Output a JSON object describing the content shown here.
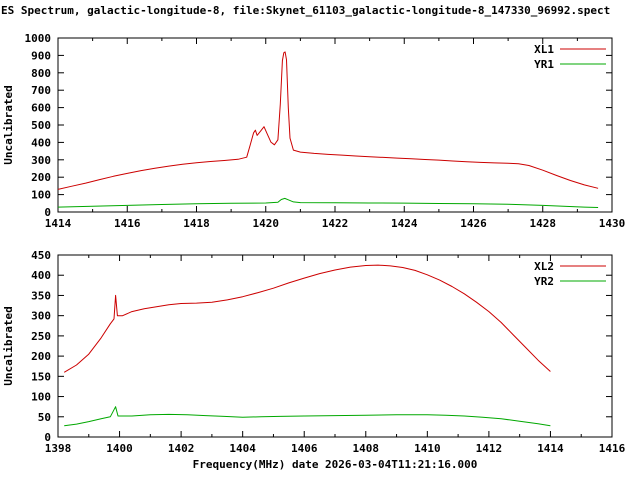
{
  "title": "ES Spectrum, galactic-longitude-8, file:Skynet_61103_galactic-longitude-8_147330_96992.spect",
  "xlabel": "Frequency(MHz) date 2026-03-04T11:21:16.000",
  "colors": {
    "axis": "#000000",
    "background": "#ffffff",
    "red_series": "#cc0000",
    "green_series": "#00a800"
  },
  "chart_data": [
    {
      "type": "line",
      "title": "",
      "ylabel": "Uncalibrated",
      "xlabel": "",
      "xlim": [
        1414,
        1430
      ],
      "ylim": [
        0,
        1000
      ],
      "xtick_step": 2,
      "xminor_step": 1,
      "ytick_step": 100,
      "grid": false,
      "legend_position": "top-right",
      "series": [
        {
          "name": "XL1",
          "color": "#cc0000",
          "points": [
            [
              1414.0,
              130
            ],
            [
              1414.4,
              148
            ],
            [
              1414.8,
              166
            ],
            [
              1415.2,
              186
            ],
            [
              1415.6,
              205
            ],
            [
              1416.0,
              222
            ],
            [
              1416.4,
              238
            ],
            [
              1416.8,
              252
            ],
            [
              1417.2,
              264
            ],
            [
              1417.6,
              274
            ],
            [
              1418.0,
              283
            ],
            [
              1418.4,
              290
            ],
            [
              1418.8,
              296
            ],
            [
              1419.2,
              303
            ],
            [
              1419.45,
              315
            ],
            [
              1419.55,
              385
            ],
            [
              1419.65,
              455
            ],
            [
              1419.7,
              470
            ],
            [
              1419.75,
              440
            ],
            [
              1419.85,
              465
            ],
            [
              1419.95,
              490
            ],
            [
              1420.05,
              445
            ],
            [
              1420.15,
              402
            ],
            [
              1420.25,
              386
            ],
            [
              1420.35,
              415
            ],
            [
              1420.42,
              620
            ],
            [
              1420.48,
              870
            ],
            [
              1420.52,
              915
            ],
            [
              1420.56,
              920
            ],
            [
              1420.6,
              875
            ],
            [
              1420.65,
              600
            ],
            [
              1420.7,
              425
            ],
            [
              1420.8,
              356
            ],
            [
              1421.0,
              344
            ],
            [
              1421.4,
              337
            ],
            [
              1421.8,
              331
            ],
            [
              1422.2,
              327
            ],
            [
              1422.6,
              322
            ],
            [
              1423.0,
              318
            ],
            [
              1423.4,
              314
            ],
            [
              1423.8,
              310
            ],
            [
              1424.2,
              306
            ],
            [
              1424.6,
              302
            ],
            [
              1425.0,
              298
            ],
            [
              1425.4,
              293
            ],
            [
              1425.8,
              289
            ],
            [
              1426.2,
              285
            ],
            [
              1426.6,
              282
            ],
            [
              1427.0,
              280
            ],
            [
              1427.3,
              277
            ],
            [
              1427.6,
              267
            ],
            [
              1428.0,
              240
            ],
            [
              1428.4,
              210
            ],
            [
              1428.8,
              181
            ],
            [
              1429.2,
              156
            ],
            [
              1429.6,
              136
            ]
          ]
        },
        {
          "name": "YR1",
          "color": "#00a800",
          "points": [
            [
              1414.0,
              28
            ],
            [
              1415.0,
              33
            ],
            [
              1416.0,
              38
            ],
            [
              1417.0,
              43
            ],
            [
              1418.0,
              47
            ],
            [
              1419.0,
              50
            ],
            [
              1420.0,
              52
            ],
            [
              1420.35,
              56
            ],
            [
              1420.45,
              72
            ],
            [
              1420.55,
              78
            ],
            [
              1420.65,
              70
            ],
            [
              1420.8,
              58
            ],
            [
              1421.0,
              54
            ],
            [
              1422.0,
              53
            ],
            [
              1423.0,
              52
            ],
            [
              1424.0,
              51
            ],
            [
              1425.0,
              49
            ],
            [
              1426.0,
              47
            ],
            [
              1427.0,
              44
            ],
            [
              1428.0,
              38
            ],
            [
              1428.6,
              33
            ],
            [
              1429.2,
              28
            ],
            [
              1429.6,
              26
            ]
          ]
        }
      ]
    },
    {
      "type": "line",
      "title": "",
      "ylabel": "Uncalibrated",
      "xlabel": "Frequency(MHz) date 2026-03-04T11:21:16.000",
      "xlim": [
        1398,
        1416
      ],
      "ylim": [
        0,
        450
      ],
      "xtick_step": 2,
      "xminor_step": 1,
      "ytick_step": 50,
      "grid": false,
      "legend_position": "top-right",
      "series": [
        {
          "name": "XL2",
          "color": "#cc0000",
          "points": [
            [
              1398.2,
              160
            ],
            [
              1398.6,
              178
            ],
            [
              1399.0,
              205
            ],
            [
              1399.4,
              245
            ],
            [
              1399.7,
              280
            ],
            [
              1399.82,
              292
            ],
            [
              1399.87,
              350
            ],
            [
              1399.93,
              300
            ],
            [
              1400.1,
              300
            ],
            [
              1400.4,
              310
            ],
            [
              1400.8,
              317
            ],
            [
              1401.2,
              322
            ],
            [
              1401.6,
              327
            ],
            [
              1402.0,
              330
            ],
            [
              1402.5,
              331
            ],
            [
              1403.0,
              333
            ],
            [
              1403.5,
              339
            ],
            [
              1404.0,
              347
            ],
            [
              1404.5,
              357
            ],
            [
              1405.0,
              368
            ],
            [
              1405.5,
              381
            ],
            [
              1406.0,
              393
            ],
            [
              1406.5,
              404
            ],
            [
              1407.0,
              413
            ],
            [
              1407.5,
              420
            ],
            [
              1408.0,
              424
            ],
            [
              1408.4,
              425
            ],
            [
              1408.8,
              423
            ],
            [
              1409.2,
              419
            ],
            [
              1409.6,
              412
            ],
            [
              1410.0,
              401
            ],
            [
              1410.4,
              388
            ],
            [
              1410.8,
              372
            ],
            [
              1411.2,
              354
            ],
            [
              1411.6,
              333
            ],
            [
              1412.0,
              310
            ],
            [
              1412.4,
              283
            ],
            [
              1412.8,
              252
            ],
            [
              1413.2,
              221
            ],
            [
              1413.6,
              190
            ],
            [
              1414.0,
              162
            ]
          ]
        },
        {
          "name": "YR2",
          "color": "#00a800",
          "points": [
            [
              1398.2,
              28
            ],
            [
              1398.6,
              32
            ],
            [
              1399.0,
              38
            ],
            [
              1399.4,
              45
            ],
            [
              1399.7,
              50
            ],
            [
              1399.87,
              75
            ],
            [
              1399.95,
              52
            ],
            [
              1400.4,
              52
            ],
            [
              1401.0,
              55
            ],
            [
              1401.6,
              56
            ],
            [
              1402.2,
              55
            ],
            [
              1402.8,
              53
            ],
            [
              1403.4,
              51
            ],
            [
              1404.0,
              49
            ],
            [
              1404.6,
              50
            ],
            [
              1405.2,
              51
            ],
            [
              1406.0,
              52
            ],
            [
              1407.0,
              53
            ],
            [
              1408.0,
              54
            ],
            [
              1409.0,
              55
            ],
            [
              1410.0,
              55
            ],
            [
              1410.6,
              54
            ],
            [
              1411.2,
              52
            ],
            [
              1411.8,
              49
            ],
            [
              1412.4,
              45
            ],
            [
              1413.0,
              39
            ],
            [
              1413.6,
              33
            ],
            [
              1414.0,
              28
            ]
          ]
        }
      ]
    }
  ]
}
